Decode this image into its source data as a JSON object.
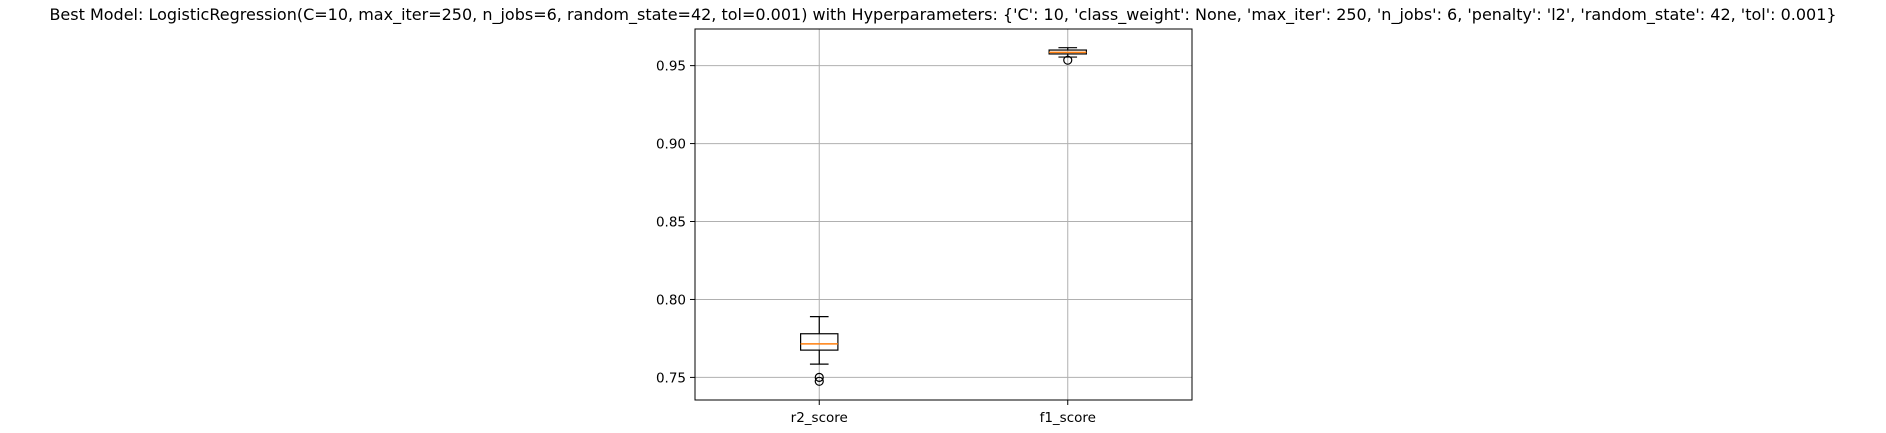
{
  "chart_data": {
    "type": "boxplot",
    "title": "Best Model: LogisticRegression(C=10, max_iter=250, n_jobs=6, random_state=42, tol=0.001) with Hyperparameters: {'C': 10, 'class_weight': None, 'max_iter': 250, 'n_jobs': 6, 'penalty': 'l2', 'random_state': 42, 'tol': 0.001}",
    "xlabel": "",
    "ylabel": "",
    "categories": [
      "r2_score",
      "f1_score"
    ],
    "boxes": [
      {
        "label": "r2_score",
        "whisker_low": 0.7585,
        "q1": 0.7675,
        "median": 0.7715,
        "q3": 0.778,
        "whisker_high": 0.789,
        "outliers": [
          0.7475,
          0.75
        ]
      },
      {
        "label": "f1_score",
        "whisker_low": 0.9555,
        "q1": 0.9575,
        "median": 0.9585,
        "q3": 0.96,
        "whisker_high": 0.9615,
        "outliers": [
          0.9535
        ]
      }
    ],
    "ylim": [
      0.7355,
      0.9735
    ],
    "yticks": [
      0.75,
      0.8,
      0.85,
      0.9,
      0.95
    ],
    "ytick_labels": [
      "0.75",
      "0.80",
      "0.85",
      "0.90",
      "0.95"
    ],
    "grid": true,
    "colors": {
      "box": "#000000",
      "median": "#ff7f0e",
      "grid": "#b0b0b0",
      "outlier": "#000000"
    }
  }
}
